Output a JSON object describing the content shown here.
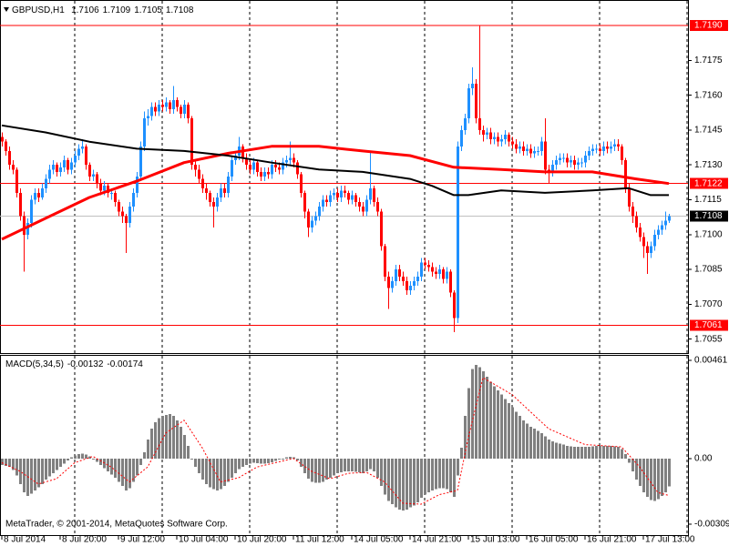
{
  "chart_data": [
    {
      "type": "candlestick",
      "title": "GBPUSD,H1",
      "up_color": "#1e90ff",
      "down_color": "#ff0000",
      "ylim": [
        1.7049,
        1.7201
      ],
      "yticks": [
        1.7175,
        {
          "value": 1.716,
          "label": "1.7160"
        },
        1.7145,
        {
          "value": 1.713,
          "label": "1.7130"
        },
        1.7115,
        {
          "value": 1.71,
          "label": "1.7100"
        },
        1.7085,
        {
          "value": 1.707,
          "label": "1.7070"
        },
        1.7055
      ],
      "xticks": [
        {
          "value": 0,
          "label": "8 Jul 2014"
        },
        {
          "value": 16,
          "label": "8 Jul 20:00"
        },
        {
          "value": 32,
          "label": "9 Jul 12:00"
        },
        {
          "value": 48,
          "label": "10 Jul 04:00"
        },
        {
          "value": 64,
          "label": "10 Jul 20:00"
        },
        {
          "value": 80,
          "label": "11 Jul 12:00"
        },
        {
          "value": 96,
          "label": "14 Jul 05:00"
        },
        {
          "value": 112,
          "label": "14 Jul 21:00"
        },
        {
          "value": 128,
          "label": "15 Jul 13:00"
        },
        {
          "value": 144,
          "label": "16 Jul 05:00"
        },
        {
          "value": 160,
          "label": "16 Jul 21:00"
        },
        {
          "value": 176,
          "label": "17 Jul 13:00"
        }
      ],
      "hlines": [
        {
          "value": 1.719,
          "label": "1.7190"
        },
        1.7122,
        1.7061
      ],
      "hline_color": "#ff0000",
      "price_line_color": "#c0c0c0",
      "open": [
        1.7142,
        1.714,
        1.7136,
        1.713,
        1.7128,
        1.7118,
        1.7108,
        1.71,
        1.7105,
        1.7115,
        1.7118,
        1.7116,
        1.712,
        1.7124,
        1.7128,
        1.713,
        1.7127,
        1.7129,
        1.7132,
        1.7128,
        1.7131,
        1.7134,
        1.7137,
        1.7138,
        1.713,
        1.7125,
        1.7126,
        1.7122,
        1.7119,
        1.7121,
        1.7118,
        1.7118,
        1.7114,
        1.711,
        1.7108,
        1.7105,
        1.7112,
        1.7118,
        1.7125,
        1.7138,
        1.715,
        1.7151,
        1.7155,
        1.7153,
        1.7156,
        1.7155,
        1.7157,
        1.7154,
        1.7158,
        1.7155,
        1.7152,
        1.7156,
        1.715,
        1.713,
        1.7128,
        1.7124,
        1.712,
        1.7118,
        1.7114,
        1.7112,
        1.7116,
        1.712,
        1.7118,
        1.7125,
        1.7132,
        1.7134,
        1.7138,
        1.7133,
        1.713,
        1.7128,
        1.7131,
        1.7127,
        1.7125,
        1.7127,
        1.7126,
        1.713,
        1.7129,
        1.7128,
        1.7131,
        1.7132,
        1.7133,
        1.7131,
        1.7126,
        1.7118,
        1.711,
        1.7103,
        1.7106,
        1.7108,
        1.7112,
        1.7115,
        1.7114,
        1.7117,
        1.7118,
        1.7116,
        1.7119,
        1.7118,
        1.7115,
        1.7117,
        1.7114,
        1.7112,
        1.711,
        1.7115,
        1.712,
        1.7114,
        1.711,
        1.7095,
        1.7082,
        1.7077,
        1.708,
        1.7085,
        1.7082,
        1.708,
        1.7076,
        1.7078,
        1.708,
        1.7082,
        1.7088,
        1.7087,
        1.7086,
        1.7084,
        1.7083,
        1.7085,
        1.7081,
        1.7084,
        1.7075,
        1.7064,
        1.7138,
        1.7145,
        1.715,
        1.7163,
        1.7165,
        1.715,
        1.7145,
        1.7143,
        1.7144,
        1.7141,
        1.7142,
        1.714,
        1.7141,
        1.7143,
        1.714,
        1.7139,
        1.7137,
        1.7138,
        1.7136,
        1.7137,
        1.7135,
        1.7136,
        1.7136,
        1.714,
        1.7128,
        1.7127,
        1.713,
        1.7132,
        1.7133,
        1.7133,
        1.7131,
        1.7132,
        1.713,
        1.7131,
        1.7131,
        1.7134,
        1.7136,
        1.7137,
        1.7137,
        1.7136,
        1.7138,
        1.7137,
        1.7138,
        1.7139,
        1.7138,
        1.7132,
        1.712,
        1.7112,
        1.7108,
        1.7103,
        1.7099,
        1.7095,
        1.7092,
        1.7095,
        1.71,
        1.7102,
        1.7104,
        1.7106
      ],
      "high": [
        1.7144,
        1.7141,
        1.7138,
        1.7132,
        1.7129,
        1.712,
        1.711,
        1.7107,
        1.7117,
        1.712,
        1.712,
        1.7122,
        1.7126,
        1.713,
        1.7132,
        1.7131,
        1.7131,
        1.7134,
        1.7133,
        1.7133,
        1.7136,
        1.7139,
        1.7141,
        1.7139,
        1.7131,
        1.7128,
        1.7127,
        1.7124,
        1.7123,
        1.7122,
        1.712,
        1.7119,
        1.7115,
        1.7112,
        1.7109,
        1.7114,
        1.712,
        1.7127,
        1.714,
        1.7153,
        1.7154,
        1.7157,
        1.7157,
        1.7158,
        1.7158,
        1.7159,
        1.7158,
        1.7164,
        1.7159,
        1.7156,
        1.7158,
        1.7157,
        1.7151,
        1.7132,
        1.713,
        1.7126,
        1.7122,
        1.7119,
        1.7116,
        1.7118,
        1.7122,
        1.7122,
        1.7127,
        1.7134,
        1.7136,
        1.7142,
        1.7139,
        1.7135,
        1.7132,
        1.7133,
        1.7132,
        1.7129,
        1.7129,
        1.7129,
        1.7132,
        1.7132,
        1.7131,
        1.7133,
        1.7134,
        1.714,
        1.7135,
        1.7132,
        1.7127,
        1.7119,
        1.7111,
        1.7108,
        1.711,
        1.7114,
        1.7117,
        1.7117,
        1.7119,
        1.712,
        1.712,
        1.7121,
        1.7121,
        1.7119,
        1.7119,
        1.7118,
        1.7116,
        1.7114,
        1.7117,
        1.7136,
        1.7121,
        1.7116,
        1.7111,
        1.7096,
        1.7084,
        1.7082,
        1.7087,
        1.7087,
        1.7084,
        1.7082,
        1.708,
        1.7082,
        1.7084,
        1.709,
        1.709,
        1.7089,
        1.7088,
        1.7086,
        1.7087,
        1.7086,
        1.7086,
        1.7085,
        1.7076,
        1.714,
        1.7147,
        1.7152,
        1.7165,
        1.7172,
        1.7167,
        1.719,
        1.7147,
        1.7146,
        1.7146,
        1.7144,
        1.7144,
        1.7143,
        1.7145,
        1.7144,
        1.7142,
        1.7141,
        1.714,
        1.714,
        1.7139,
        1.7139,
        1.7138,
        1.7138,
        1.7142,
        1.715,
        1.713,
        1.7132,
        1.7134,
        1.7135,
        1.7135,
        1.7135,
        1.7134,
        1.7134,
        1.7133,
        1.7133,
        1.7136,
        1.7138,
        1.7139,
        1.7139,
        1.7139,
        1.714,
        1.714,
        1.714,
        1.7141,
        1.7141,
        1.7139,
        1.7133,
        1.7122,
        1.7114,
        1.711,
        1.7105,
        1.7101,
        1.7097,
        1.7097,
        1.7102,
        1.7104,
        1.7106,
        1.711,
        1.7109
      ],
      "low": [
        1.7138,
        1.7134,
        1.7128,
        1.7126,
        1.7116,
        1.7106,
        1.7084,
        1.7098,
        1.7103,
        1.7113,
        1.7114,
        1.7115,
        1.7118,
        1.7122,
        1.7126,
        1.7125,
        1.7125,
        1.7127,
        1.7126,
        1.7126,
        1.7129,
        1.7132,
        1.7135,
        1.7128,
        1.7123,
        1.7123,
        1.712,
        1.7117,
        1.7117,
        1.7116,
        1.7115,
        1.7112,
        1.7108,
        1.7105,
        1.7092,
        1.7103,
        1.711,
        1.7116,
        1.7123,
        1.7136,
        1.7147,
        1.7149,
        1.7151,
        1.7151,
        1.7153,
        1.7153,
        1.7152,
        1.7152,
        1.7153,
        1.715,
        1.715,
        1.7148,
        1.7128,
        1.7125,
        1.7122,
        1.7118,
        1.7115,
        1.7112,
        1.7103,
        1.711,
        1.7114,
        1.7116,
        1.7116,
        1.7123,
        1.713,
        1.7132,
        1.7131,
        1.7128,
        1.7126,
        1.7126,
        1.7125,
        1.7123,
        1.7123,
        1.7124,
        1.7124,
        1.7127,
        1.7126,
        1.7126,
        1.7129,
        1.713,
        1.7129,
        1.7124,
        1.7116,
        1.7107,
        1.7099,
        1.7101,
        1.7104,
        1.7106,
        1.711,
        1.7112,
        1.7112,
        1.7115,
        1.7114,
        1.7114,
        1.7116,
        1.7113,
        1.7113,
        1.7112,
        1.711,
        1.7108,
        1.7108,
        1.7113,
        1.7112,
        1.7108,
        1.7093,
        1.708,
        1.7068,
        1.7075,
        1.7078,
        1.708,
        1.7078,
        1.7074,
        1.7074,
        1.7076,
        1.7078,
        1.708,
        1.7085,
        1.7084,
        1.7082,
        1.7081,
        1.7081,
        1.7079,
        1.7079,
        1.7073,
        1.7058,
        1.7062,
        1.7136,
        1.7143,
        1.7148,
        1.716,
        1.7148,
        1.7143,
        1.714,
        1.7141,
        1.7139,
        1.7139,
        1.7138,
        1.7138,
        1.7139,
        1.7138,
        1.7137,
        1.7135,
        1.7135,
        1.7134,
        1.7134,
        1.7133,
        1.7133,
        1.7134,
        1.7134,
        1.7126,
        1.7122,
        1.7125,
        1.7128,
        1.713,
        1.7131,
        1.7129,
        1.7129,
        1.7128,
        1.7128,
        1.7129,
        1.7129,
        1.7132,
        1.7134,
        1.7135,
        1.7134,
        1.7134,
        1.7135,
        1.7135,
        1.7136,
        1.7136,
        1.713,
        1.7118,
        1.711,
        1.7105,
        1.7101,
        1.7097,
        1.709,
        1.7083,
        1.709,
        1.7093,
        1.7098,
        1.71,
        1.7102,
        1.7105
      ],
      "close": [
        1.714,
        1.7136,
        1.713,
        1.7128,
        1.7118,
        1.7108,
        1.71,
        1.7105,
        1.7115,
        1.7118,
        1.7116,
        1.712,
        1.7124,
        1.7128,
        1.713,
        1.7127,
        1.7129,
        1.7132,
        1.7128,
        1.7131,
        1.7134,
        1.7137,
        1.7138,
        1.713,
        1.7125,
        1.7126,
        1.7122,
        1.7119,
        1.7121,
        1.7118,
        1.7118,
        1.7114,
        1.711,
        1.7108,
        1.7105,
        1.7112,
        1.7118,
        1.7125,
        1.7138,
        1.715,
        1.7151,
        1.7155,
        1.7153,
        1.7156,
        1.7155,
        1.7157,
        1.7154,
        1.7158,
        1.7155,
        1.7152,
        1.7156,
        1.715,
        1.713,
        1.7128,
        1.7124,
        1.712,
        1.7118,
        1.7114,
        1.7112,
        1.7116,
        1.712,
        1.7118,
        1.7125,
        1.7132,
        1.7134,
        1.7138,
        1.7133,
        1.713,
        1.7128,
        1.7131,
        1.7127,
        1.7125,
        1.7127,
        1.7126,
        1.713,
        1.7129,
        1.7128,
        1.7131,
        1.7132,
        1.7133,
        1.7131,
        1.7126,
        1.7118,
        1.711,
        1.7103,
        1.7106,
        1.7108,
        1.7112,
        1.7115,
        1.7114,
        1.7117,
        1.7118,
        1.7116,
        1.7119,
        1.7118,
        1.7115,
        1.7117,
        1.7114,
        1.7112,
        1.711,
        1.7115,
        1.712,
        1.7114,
        1.711,
        1.7095,
        1.7082,
        1.7077,
        1.708,
        1.7085,
        1.7082,
        1.708,
        1.7076,
        1.7078,
        1.708,
        1.7082,
        1.7088,
        1.7087,
        1.7086,
        1.7084,
        1.7083,
        1.7085,
        1.7081,
        1.7084,
        1.7075,
        1.7064,
        1.7138,
        1.7145,
        1.715,
        1.7163,
        1.7165,
        1.715,
        1.7145,
        1.7143,
        1.7144,
        1.7141,
        1.7142,
        1.714,
        1.7141,
        1.7143,
        1.714,
        1.7139,
        1.7137,
        1.7138,
        1.7136,
        1.7137,
        1.7135,
        1.7136,
        1.7136,
        1.714,
        1.7128,
        1.7127,
        1.713,
        1.7132,
        1.7133,
        1.7133,
        1.7131,
        1.7132,
        1.713,
        1.7131,
        1.7131,
        1.7134,
        1.7136,
        1.7137,
        1.7137,
        1.7136,
        1.7138,
        1.7137,
        1.7138,
        1.7139,
        1.7138,
        1.7132,
        1.712,
        1.7112,
        1.7108,
        1.7103,
        1.7099,
        1.7095,
        1.7092,
        1.7095,
        1.71,
        1.7102,
        1.7104,
        1.7106,
        1.7108
      ],
      "lines": [
        {
          "color": "#ff0000",
          "width": 3,
          "x": [
            0,
            12,
            24,
            37,
            50,
            62,
            74,
            87,
            99,
            112,
            124,
            137,
            149,
            162,
            174,
            183
          ],
          "values": [
            1.7098,
            1.7107,
            1.7116,
            1.7123,
            1.7131,
            1.7135,
            1.7138,
            1.7138,
            1.7136,
            1.7134,
            1.7129,
            1.7128,
            1.7127,
            1.7127,
            1.7124,
            1.7122
          ]
        },
        {
          "color": "#000000",
          "width": 2,
          "x": [
            0,
            12,
            24,
            37,
            50,
            62,
            74,
            87,
            99,
            112,
            118,
            124,
            128,
            137,
            149,
            162,
            172,
            178,
            183
          ],
          "values": [
            1.7147,
            1.7144,
            1.714,
            1.7137,
            1.7136,
            1.7134,
            1.7131,
            1.7128,
            1.7127,
            1.7124,
            1.7121,
            1.7117,
            1.7117,
            1.7119,
            1.7118,
            1.7119,
            1.712,
            1.7117,
            1.7117
          ]
        }
      ]
    },
    {
      "type": "bar",
      "title": "MACD(5,34,5)",
      "color": "#808080",
      "ylim": [
        -0.0036,
        0.00487
      ],
      "yticks": [
        0.00461,
        {
          "value": 0,
          "label": "0.00"
        },
        -0.00309
      ],
      "values": [
        -0.0003,
        -0.00035,
        -0.0004,
        -0.00055,
        -0.0008,
        -0.0012,
        -0.0016,
        -0.00175,
        -0.00165,
        -0.0015,
        -0.00135,
        -0.0012,
        -0.001,
        -0.00085,
        -0.0007,
        -0.00055,
        -0.0004,
        -0.00025,
        -0.0001,
        5e-05,
        0.00015,
        0.0002,
        0.00022,
        0.00018,
        0.0001,
        0,
        -0.00015,
        -0.0003,
        -0.00045,
        -0.0006,
        -0.00075,
        -0.0009,
        -0.0011,
        -0.0013,
        -0.0015,
        -0.0014,
        -0.0011,
        -0.0008,
        -0.0003,
        0.0003,
        0.0009,
        0.0014,
        0.0017,
        0.0019,
        0.002,
        0.00205,
        0.0021,
        0.002,
        0.0018,
        0.0015,
        0.0011,
        0.0006,
        0,
        -0.0004,
        -0.0007,
        -0.001,
        -0.0012,
        -0.00135,
        -0.00145,
        -0.0015,
        -0.00145,
        -0.0013,
        -0.0011,
        -0.0009,
        -0.0007,
        -0.0005,
        -0.0004,
        -0.0003,
        -0.00025,
        -0.0002,
        -0.00022,
        -0.00025,
        -0.00025,
        -0.00022,
        -0.00018,
        -0.00012,
        -5e-05,
        0,
        5e-05,
        8e-05,
        5e-05,
        -0.0001,
        -0.0004,
        -0.0007,
        -0.00095,
        -0.0011,
        -0.00115,
        -0.00115,
        -0.0011,
        -0.001,
        -0.0009,
        -0.0008,
        -0.0007,
        -0.00065,
        -0.0006,
        -0.0006,
        -0.0006,
        -0.00062,
        -0.00065,
        -0.0007,
        -0.0006,
        -0.0005,
        -0.0006,
        -0.0009,
        -0.0013,
        -0.0017,
        -0.002,
        -0.00215,
        -0.0023,
        -0.0024,
        -0.00245,
        -0.0024,
        -0.0023,
        -0.0022,
        -0.00205,
        -0.00185,
        -0.0017,
        -0.0016,
        -0.0015,
        -0.00145,
        -0.0014,
        -0.0014,
        -0.00145,
        -0.0016,
        -0.0018,
        -0.0008,
        0.0005,
        0.002,
        0.0033,
        0.0042,
        0.0044,
        0.0043,
        0.0041,
        0.00385,
        0.0036,
        0.0034,
        0.0032,
        0.003,
        0.0028,
        0.0026,
        0.0024,
        0.0022,
        0.002,
        0.0018,
        0.00165,
        0.0015,
        0.0014,
        0.0013,
        0.0012,
        0.00105,
        0.0009,
        0.0008,
        0.00075,
        0.0007,
        0.00065,
        0.0006,
        0.00058,
        0.00055,
        0.00055,
        0.00055,
        0.00055,
        0.00056,
        0.00058,
        0.0006,
        0.0006,
        0.0006,
        0.0006,
        0.0006,
        0.00058,
        0.00056,
        0.00045,
        0.0002,
        -0.0002,
        -0.0006,
        -0.001,
        -0.0013,
        -0.0016,
        -0.0018,
        -0.00195,
        -0.002,
        -0.0019,
        -0.00175,
        -0.0016,
        -0.00132
      ],
      "signal": {
        "color": "#ff0000",
        "x": [
          0,
          5,
          10,
          15,
          20,
          25,
          30,
          35,
          40,
          45,
          50,
          55,
          60,
          65,
          70,
          75,
          80,
          85,
          90,
          95,
          100,
          105,
          110,
          115,
          120,
          125,
          128,
          132,
          140,
          150,
          160,
          170,
          175,
          180,
          183
        ],
        "values": [
          -0.0002,
          -0.0006,
          -0.0012,
          -0.00095,
          -0.0002,
          0.0001,
          -0.0004,
          -0.0011,
          -0.0004,
          0.0012,
          0.0018,
          0.0005,
          -0.0011,
          -0.0009,
          -0.0004,
          -0.0002,
          0,
          -0.0006,
          -0.00095,
          -0.0007,
          -0.00065,
          -0.0011,
          -0.0021,
          -0.00215,
          -0.0017,
          -0.0015,
          0.001,
          0.0038,
          0.003,
          0.0014,
          0.00065,
          0.00055,
          -0.0004,
          -0.0016,
          -0.00174
        ]
      },
      "footer": "MetaTrader, © 2001-2014, MetaQuotes Software Corp."
    }
  ]
}
